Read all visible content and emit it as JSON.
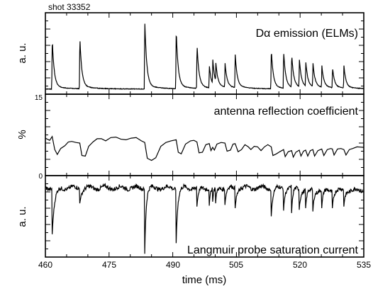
{
  "shot_label": "shot 33352",
  "xlabel": "time  (ms)",
  "xlim": [
    460,
    535
  ],
  "xticks": [
    "460",
    "475",
    "490",
    "505",
    "520",
    "535"
  ],
  "chart_data": [
    {
      "type": "line",
      "title": "Dα emission (ELMs)",
      "ylabel": "a. u.",
      "yticks": [],
      "ylim": [
        0,
        1
      ],
      "baseline": 0.06,
      "elm_times": [
        461.6,
        468.1,
        483.4,
        490.8,
        495.7,
        498.6,
        499.4,
        500.1,
        502.3,
        504.7,
        513.2,
        516.1,
        518.0,
        519.8,
        521.3,
        523.0,
        525.1,
        527.6,
        530.3
      ],
      "elm_peaks": [
        0.6,
        0.62,
        0.82,
        0.71,
        0.53,
        0.27,
        0.3,
        0.24,
        0.29,
        0.4,
        0.48,
        0.45,
        0.4,
        0.34,
        0.31,
        0.29,
        0.26,
        0.25,
        0.27
      ]
    },
    {
      "type": "line",
      "title": "antenna reflection coefficient",
      "ylabel": "%",
      "yticks": [
        "0",
        "15"
      ],
      "ylim": [
        0,
        15
      ],
      "points": [
        [
          460,
          6.9
        ],
        [
          461,
          6.5
        ],
        [
          461.6,
          7.2
        ],
        [
          462.2,
          4.8
        ],
        [
          462.8,
          3.9
        ],
        [
          463.6,
          5.0
        ],
        [
          464.6,
          5.5
        ],
        [
          465.4,
          6.2
        ],
        [
          466.2,
          6.3
        ],
        [
          467.2,
          6.1
        ],
        [
          468.1,
          6.0
        ],
        [
          468.6,
          3.7
        ],
        [
          469.4,
          3.6
        ],
        [
          470.2,
          5.4
        ],
        [
          471.2,
          6.2
        ],
        [
          472.2,
          6.8
        ],
        [
          473.2,
          6.8
        ],
        [
          474.2,
          6.4
        ],
        [
          475.4,
          7.0
        ],
        [
          476.6,
          7.1
        ],
        [
          477.8,
          6.7
        ],
        [
          479.0,
          6.6
        ],
        [
          480.2,
          6.9
        ],
        [
          481.4,
          7.0
        ],
        [
          482.6,
          6.4
        ],
        [
          483.4,
          6.1
        ],
        [
          484.0,
          3.2
        ],
        [
          485.0,
          2.8
        ],
        [
          486.0,
          3.3
        ],
        [
          487.2,
          5.4
        ],
        [
          488.4,
          6.1
        ],
        [
          489.6,
          6.4
        ],
        [
          490.8,
          6.6
        ],
        [
          491.3,
          4.3
        ],
        [
          492.0,
          4.0
        ],
        [
          493.0,
          5.8
        ],
        [
          494.2,
          6.4
        ],
        [
          495.0,
          6.5
        ],
        [
          495.7,
          6.2
        ],
        [
          496.2,
          4.2
        ],
        [
          497.0,
          4.3
        ],
        [
          497.8,
          5.7
        ],
        [
          498.6,
          5.9
        ],
        [
          499.0,
          4.6
        ],
        [
          499.4,
          5.2
        ],
        [
          499.8,
          4.7
        ],
        [
          500.4,
          5.8
        ],
        [
          501.4,
          6.1
        ],
        [
          502.3,
          6.0
        ],
        [
          502.8,
          4.5
        ],
        [
          503.6,
          4.7
        ],
        [
          504.2,
          5.8
        ],
        [
          504.7,
          5.9
        ],
        [
          505.4,
          4.4
        ],
        [
          506.2,
          4.8
        ],
        [
          507.0,
          5.7
        ],
        [
          507.8,
          5.3
        ],
        [
          508.4,
          4.8
        ],
        [
          509.2,
          5.4
        ],
        [
          510.0,
          5.3
        ],
        [
          510.8,
          4.6
        ],
        [
          511.6,
          5.3
        ],
        [
          512.4,
          5.7
        ],
        [
          513.2,
          5.3
        ],
        [
          513.6,
          3.7
        ],
        [
          514.4,
          4.0
        ],
        [
          515.2,
          4.4
        ],
        [
          516.1,
          4.8
        ],
        [
          516.5,
          3.5
        ],
        [
          517.2,
          4.4
        ],
        [
          518.0,
          4.6
        ],
        [
          518.4,
          3.4
        ],
        [
          519.0,
          4.3
        ],
        [
          519.8,
          4.7
        ],
        [
          520.2,
          3.6
        ],
        [
          520.8,
          4.5
        ],
        [
          521.3,
          4.7
        ],
        [
          521.8,
          3.6
        ],
        [
          522.4,
          4.6
        ],
        [
          523.0,
          4.8
        ],
        [
          523.4,
          3.6
        ],
        [
          524.2,
          4.6
        ],
        [
          525.1,
          4.9
        ],
        [
          525.6,
          3.7
        ],
        [
          526.4,
          4.8
        ],
        [
          527.2,
          5.0
        ],
        [
          527.6,
          4.9
        ],
        [
          528.0,
          3.8
        ],
        [
          528.8,
          4.9
        ],
        [
          529.6,
          5.0
        ],
        [
          530.3,
          4.8
        ],
        [
          530.8,
          3.8
        ],
        [
          531.6,
          4.8
        ],
        [
          532.4,
          5.0
        ],
        [
          533.4,
          5.3
        ],
        [
          535,
          5.2
        ]
      ]
    },
    {
      "type": "line",
      "title": "Langmuir probe saturation current",
      "ylabel": "a. u.",
      "yticks": [],
      "ylim": [
        0,
        1
      ],
      "base": 0.85,
      "dips": [
        [
          461.6,
          0.28,
          0.9
        ],
        [
          468.1,
          0.66,
          0.7
        ],
        [
          483.4,
          0.04,
          0.5
        ],
        [
          490.8,
          0.17,
          0.6
        ],
        [
          495.7,
          0.62,
          0.6
        ],
        [
          498.6,
          0.63,
          0.4
        ],
        [
          499.4,
          0.68,
          0.4
        ],
        [
          500.1,
          0.66,
          0.4
        ],
        [
          502.3,
          0.64,
          0.5
        ],
        [
          504.7,
          0.6,
          0.6
        ],
        [
          513.2,
          0.5,
          0.6
        ],
        [
          516.1,
          0.57,
          0.5
        ],
        [
          518.0,
          0.54,
          0.5
        ],
        [
          519.8,
          0.58,
          0.5
        ],
        [
          521.3,
          0.6,
          0.5
        ],
        [
          523.0,
          0.56,
          0.5
        ],
        [
          525.1,
          0.6,
          0.5
        ],
        [
          527.6,
          0.6,
          0.5
        ],
        [
          530.3,
          0.62,
          0.5
        ]
      ]
    }
  ]
}
